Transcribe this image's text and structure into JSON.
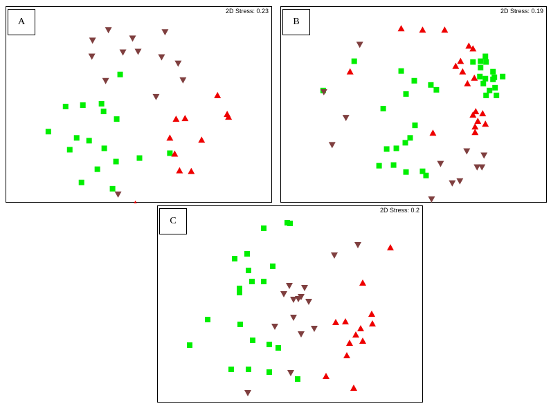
{
  "colors": {
    "square": "#00ee00",
    "up": "#ee0000",
    "down": "#7f3f3f"
  },
  "chart_data": [
    {
      "type": "scatter",
      "panel_label": "A",
      "stress_text": "2D Stress: 0.23",
      "xlim": [
        0,
        386
      ],
      "ylim": [
        0,
        282
      ],
      "series": [
        {
          "marker": "square",
          "points": [
            [
              165,
              97
            ],
            [
              86,
              143
            ],
            [
              111,
              141
            ],
            [
              138,
              139
            ],
            [
              141,
              150
            ],
            [
              160,
              161
            ],
            [
              61,
              179
            ],
            [
              102,
              188
            ],
            [
              120,
              192
            ],
            [
              92,
              205
            ],
            [
              142,
              203
            ],
            [
              193,
              217
            ],
            [
              159,
              222
            ],
            [
              132,
              233
            ],
            [
              109,
              252
            ],
            [
              154,
              261
            ],
            [
              237,
              210
            ]
          ]
        },
        {
          "marker": "triangle-down",
          "points": [
            [
              148,
              33
            ],
            [
              125,
              48
            ],
            [
              183,
              45
            ],
            [
              230,
              36
            ],
            [
              124,
              71
            ],
            [
              169,
              65
            ],
            [
              191,
              64
            ],
            [
              225,
              72
            ],
            [
              249,
              81
            ],
            [
              144,
              106
            ],
            [
              256,
              105
            ],
            [
              217,
              129
            ],
            [
              162,
              269
            ]
          ]
        },
        {
          "marker": "triangle-up",
          "points": [
            [
              306,
              127
            ],
            [
              320,
              154
            ],
            [
              322,
              158
            ],
            [
              246,
              161
            ],
            [
              259,
              160
            ],
            [
              237,
              188
            ],
            [
              283,
              191
            ],
            [
              244,
              211
            ],
            [
              251,
              235
            ],
            [
              268,
              236
            ],
            [
              187,
              283
            ]
          ]
        }
      ]
    },
    {
      "type": "scatter",
      "panel_label": "B",
      "stress_text": "2D Stress: 0.19",
      "xlim": [
        0,
        386
      ],
      "ylim": [
        0,
        282
      ],
      "series": [
        {
          "marker": "square",
          "points": [
            [
              106,
              78
            ],
            [
              61,
              120
            ],
            [
              174,
              92
            ],
            [
              193,
              106
            ],
            [
              217,
              112
            ],
            [
              225,
              119
            ],
            [
              181,
              125
            ],
            [
              148,
              146
            ],
            [
              194,
              170
            ],
            [
              187,
              188
            ],
            [
              180,
              195
            ],
            [
              153,
              204
            ],
            [
              167,
              203
            ],
            [
              142,
              228
            ],
            [
              163,
              227
            ],
            [
              181,
              237
            ],
            [
              205,
              236
            ],
            [
              210,
              242
            ],
            [
              278,
              79
            ],
            [
              289,
              78
            ],
            [
              296,
              71
            ],
            [
              297,
              79
            ],
            [
              289,
              87
            ],
            [
              307,
              93
            ],
            [
              309,
              101
            ],
            [
              321,
              100
            ],
            [
              296,
              103
            ],
            [
              288,
              100
            ],
            [
              293,
              110
            ],
            [
              307,
              104
            ],
            [
              302,
              120
            ],
            [
              310,
              116
            ],
            [
              297,
              127
            ],
            [
              312,
              127
            ]
          ]
        },
        {
          "marker": "triangle-down",
          "points": [
            [
              114,
              54
            ],
            [
              62,
              122
            ],
            [
              94,
              159
            ],
            [
              74,
              198
            ],
            [
              269,
              207
            ],
            [
              294,
              213
            ],
            [
              231,
              225
            ],
            [
              284,
              230
            ],
            [
              291,
              230
            ],
            [
              259,
              250
            ],
            [
              248,
              253
            ],
            [
              218,
              276
            ]
          ]
        },
        {
          "marker": "triangle-up",
          "points": [
            [
              174,
              31
            ],
            [
              205,
              33
            ],
            [
              237,
              33
            ],
            [
              272,
              56
            ],
            [
              278,
              60
            ],
            [
              260,
              78
            ],
            [
              253,
              85
            ],
            [
              263,
              93
            ],
            [
              100,
              93
            ],
            [
              280,
              102
            ],
            [
              270,
              110
            ],
            [
              282,
              150
            ],
            [
              278,
              155
            ],
            [
              292,
              153
            ],
            [
              285,
              164
            ],
            [
              296,
              168
            ],
            [
              281,
              172
            ],
            [
              281,
              180
            ],
            [
              220,
              181
            ]
          ]
        }
      ]
    },
    {
      "type": "scatter",
      "panel_label": "C",
      "stress_text": "2D Stress: 0.2",
      "xlim": [
        0,
        384
      ],
      "ylim": [
        0,
        285
      ],
      "series": [
        {
          "marker": "square",
          "points": [
            [
              153,
              32
            ],
            [
              187,
              24
            ],
            [
              191,
              25
            ],
            [
              129,
              69
            ],
            [
              111,
              76
            ],
            [
              166,
              87
            ],
            [
              131,
              93
            ],
            [
              136,
              109
            ],
            [
              153,
              109
            ],
            [
              118,
              119
            ],
            [
              118,
              125
            ],
            [
              72,
              164
            ],
            [
              119,
              171
            ],
            [
              137,
              194
            ],
            [
              161,
              200
            ],
            [
              174,
              205
            ],
            [
              46,
              201
            ],
            [
              106,
              236
            ],
            [
              131,
              236
            ],
            [
              161,
              240
            ],
            [
              202,
              250
            ]
          ]
        },
        {
          "marker": "triangle-down",
          "points": [
            [
              289,
              56
            ],
            [
              255,
              71
            ],
            [
              190,
              115
            ],
            [
              212,
              118
            ],
            [
              182,
              127
            ],
            [
              207,
              131
            ],
            [
              203,
              134
            ],
            [
              196,
              135
            ],
            [
              218,
              138
            ],
            [
              196,
              161
            ],
            [
              226,
              177
            ],
            [
              169,
              174
            ],
            [
              207,
              185
            ],
            [
              192,
              241
            ],
            [
              130,
              270
            ]
          ]
        },
        {
          "marker": "triangle-up",
          "points": [
            [
              336,
              60
            ],
            [
              296,
              111
            ],
            [
              309,
              156
            ],
            [
              310,
              170
            ],
            [
              257,
              168
            ],
            [
              271,
              167
            ],
            [
              293,
              177
            ],
            [
              286,
              186
            ],
            [
              296,
              195
            ],
            [
              277,
              198
            ],
            [
              273,
              216
            ],
            [
              243,
              246
            ],
            [
              283,
              263
            ]
          ]
        }
      ]
    }
  ]
}
